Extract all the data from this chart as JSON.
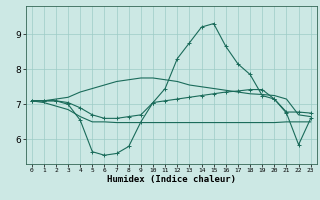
{
  "xlabel": "Humidex (Indice chaleur)",
  "x_values": [
    0,
    1,
    2,
    3,
    4,
    5,
    6,
    7,
    8,
    9,
    10,
    11,
    12,
    13,
    14,
    15,
    16,
    17,
    18,
    19,
    20,
    21,
    22,
    23
  ],
  "line_upper": [
    7.1,
    7.1,
    7.15,
    7.2,
    7.35,
    7.45,
    7.55,
    7.65,
    7.7,
    7.75,
    7.75,
    7.7,
    7.65,
    7.55,
    7.5,
    7.45,
    7.4,
    7.35,
    7.3,
    7.28,
    7.25,
    7.15,
    6.7,
    6.65
  ],
  "line_main": [
    7.1,
    7.1,
    7.1,
    7.0,
    6.55,
    5.65,
    5.55,
    5.6,
    5.8,
    6.5,
    7.05,
    7.45,
    8.3,
    8.75,
    9.2,
    9.3,
    8.65,
    8.15,
    7.85,
    7.25,
    7.15,
    6.75,
    5.85,
    6.6
  ],
  "line_mid": [
    7.1,
    7.1,
    7.1,
    7.05,
    6.9,
    6.7,
    6.6,
    6.6,
    6.65,
    6.7,
    7.05,
    7.1,
    7.15,
    7.2,
    7.25,
    7.3,
    7.35,
    7.38,
    7.42,
    7.42,
    7.15,
    6.78,
    6.78,
    6.75
  ],
  "line_lower": [
    7.1,
    7.05,
    6.95,
    6.85,
    6.65,
    6.5,
    6.5,
    6.48,
    6.48,
    6.48,
    6.48,
    6.48,
    6.48,
    6.48,
    6.48,
    6.48,
    6.48,
    6.48,
    6.48,
    6.48,
    6.48,
    6.5,
    6.5,
    6.5
  ],
  "line_color": "#1a6b5a",
  "bg_color": "#cce8e4",
  "grid_color": "#9eccc6",
  "ylim": [
    5.3,
    9.8
  ],
  "yticks": [
    6,
    7,
    8,
    9
  ],
  "xticks": [
    0,
    1,
    2,
    3,
    4,
    5,
    6,
    7,
    8,
    9,
    10,
    11,
    12,
    13,
    14,
    15,
    16,
    17,
    18,
    19,
    20,
    21,
    22,
    23
  ]
}
